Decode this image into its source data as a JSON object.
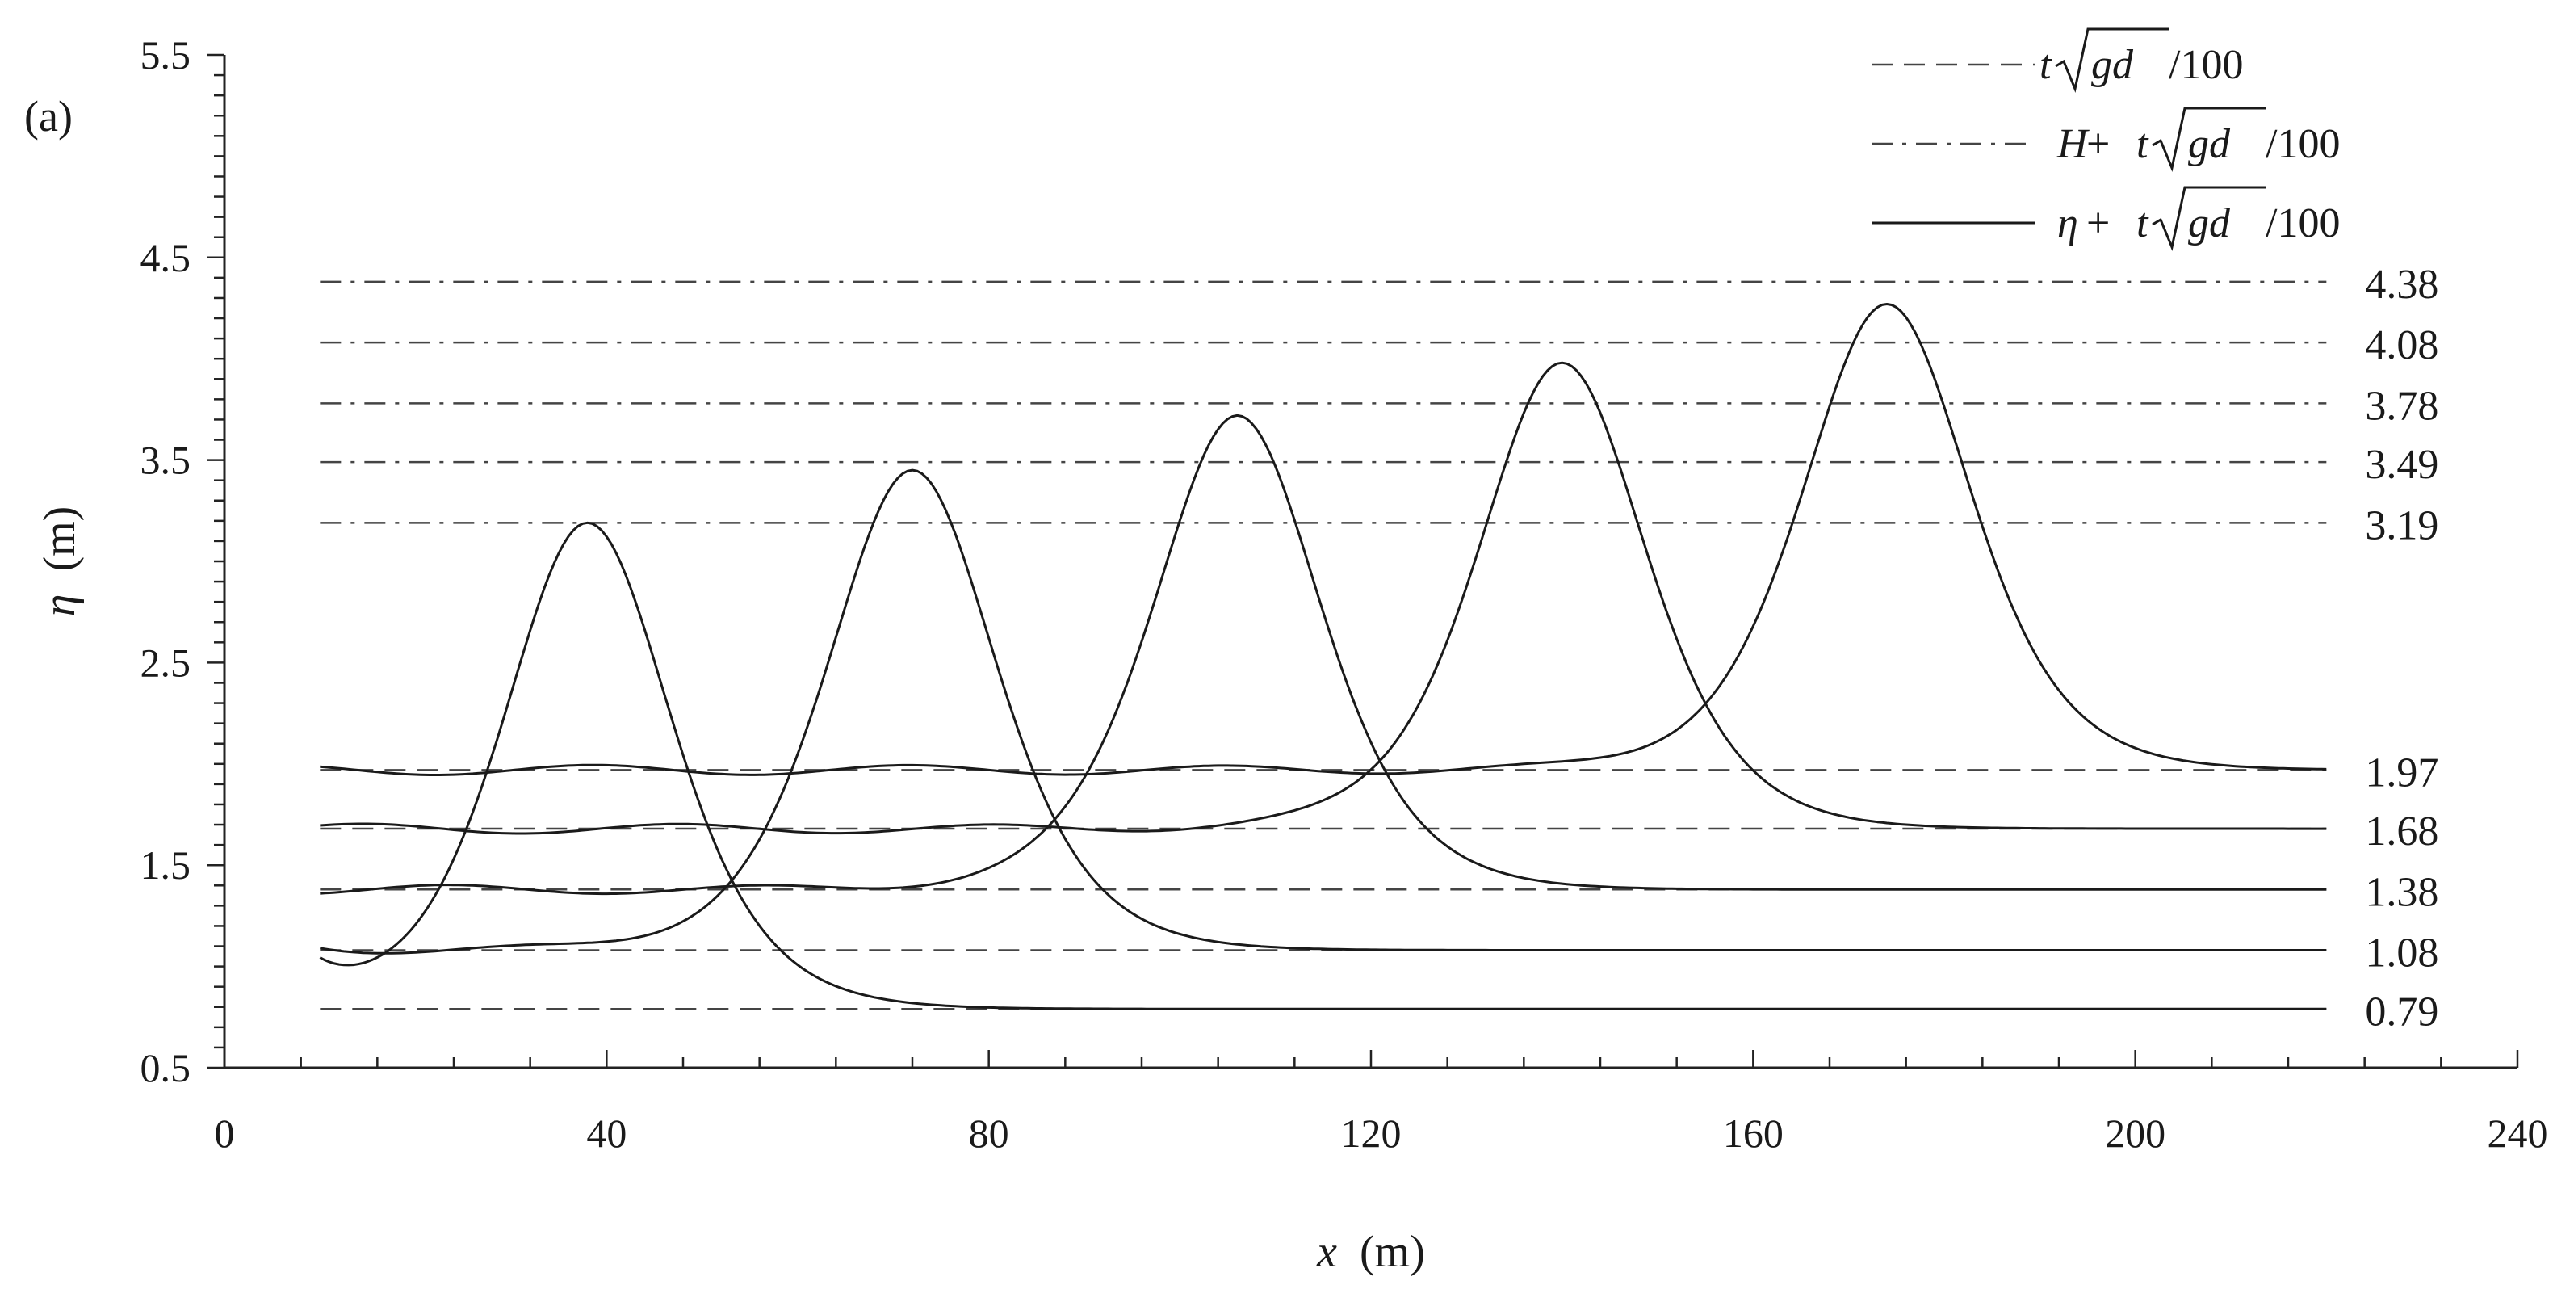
{
  "panel_label": "(a)",
  "chart_data": {
    "type": "line",
    "xlabel": {
      "symbol": "x",
      "unit": "(m)"
    },
    "ylabel": {
      "symbol": "η",
      "unit": "(m)"
    },
    "xlim": [
      0,
      240
    ],
    "ylim": [
      0.5,
      5.5
    ],
    "x_ticks": [
      0,
      40,
      80,
      120,
      160,
      200,
      240
    ],
    "y_ticks": [
      0.5,
      1.5,
      2.5,
      3.5,
      4.5,
      5.5
    ],
    "x_ticks_minor_step": 8,
    "y_ticks_minor_step": 0.1,
    "grid": false,
    "legend_position": "top-right",
    "legend": [
      {
        "style": "dashed",
        "lead": "",
        "op": "",
        "t": "t",
        "gd": "gd",
        "tail": " /100"
      },
      {
        "style": "dashdot",
        "lead": "H",
        "op": " + ",
        "t": "t",
        "gd": "gd",
        "tail": " /100"
      },
      {
        "style": "solid",
        "lead": "η",
        "op": " + ",
        "t": "t",
        "gd": "gd",
        "tail": " /100"
      }
    ],
    "dashed_levels": {
      "values": [
        0.79,
        1.08,
        1.38,
        1.68,
        1.97
      ],
      "labels": [
        "0.79",
        "1.08",
        "1.38",
        "1.68",
        "1.97"
      ]
    },
    "dashdot_levels": {
      "values": [
        3.19,
        3.49,
        3.78,
        4.08,
        4.38
      ],
      "labels": [
        "3.19",
        "3.49",
        "3.78",
        "4.08",
        "4.38"
      ]
    },
    "level_x_range": [
      10,
      220
    ],
    "series": [
      {
        "base": 0.79,
        "crest_x": 38,
        "crest_y": 3.19,
        "start_y": 0.95
      },
      {
        "base": 1.08,
        "crest_x": 72,
        "crest_y": 3.45,
        "start_y": 1.1
      },
      {
        "base": 1.38,
        "crest_x": 106,
        "crest_y": 3.72,
        "start_y": 1.38
      },
      {
        "base": 1.68,
        "crest_x": 140,
        "crest_y": 3.98,
        "start_y": 1.68
      },
      {
        "base": 1.97,
        "crest_x": 174,
        "crest_y": 4.27,
        "start_y": 1.97
      }
    ]
  }
}
